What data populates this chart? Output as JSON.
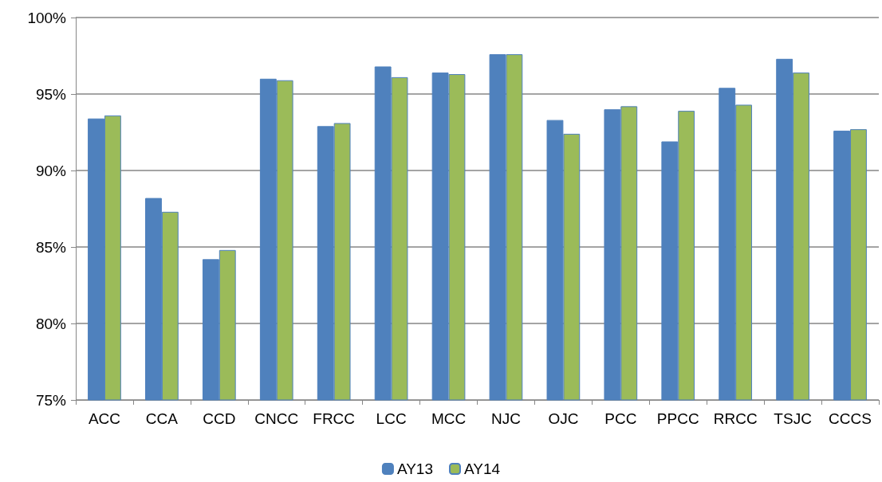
{
  "chart_data": {
    "type": "bar",
    "categories": [
      "ACC",
      "CCA",
      "CCD",
      "CNCC",
      "FRCC",
      "LCC",
      "MCC",
      "NJC",
      "OJC",
      "PCC",
      "PPCC",
      "RRCC",
      "TSJC",
      "CCCS"
    ],
    "series": [
      {
        "name": "AY13",
        "color": "#4f81bd",
        "values": [
          93.4,
          88.2,
          84.2,
          96.0,
          92.9,
          96.8,
          96.4,
          97.6,
          93.3,
          94.0,
          91.9,
          95.4,
          97.3,
          92.6
        ]
      },
      {
        "name": "AY14",
        "color": "#9bbb59",
        "values": [
          93.6,
          87.3,
          84.8,
          95.9,
          93.1,
          96.1,
          96.3,
          97.6,
          92.4,
          94.2,
          93.9,
          94.3,
          96.4,
          92.7
        ]
      }
    ],
    "ylim": [
      75,
      100
    ],
    "yticks": [
      {
        "value": 75,
        "label": "75%"
      },
      {
        "value": 80,
        "label": "80%"
      },
      {
        "value": 85,
        "label": "85%"
      },
      {
        "value": 90,
        "label": "90%"
      },
      {
        "value": 95,
        "label": "95%"
      },
      {
        "value": 100,
        "label": "100%"
      }
    ],
    "grid": "y",
    "legend": "bottom"
  }
}
